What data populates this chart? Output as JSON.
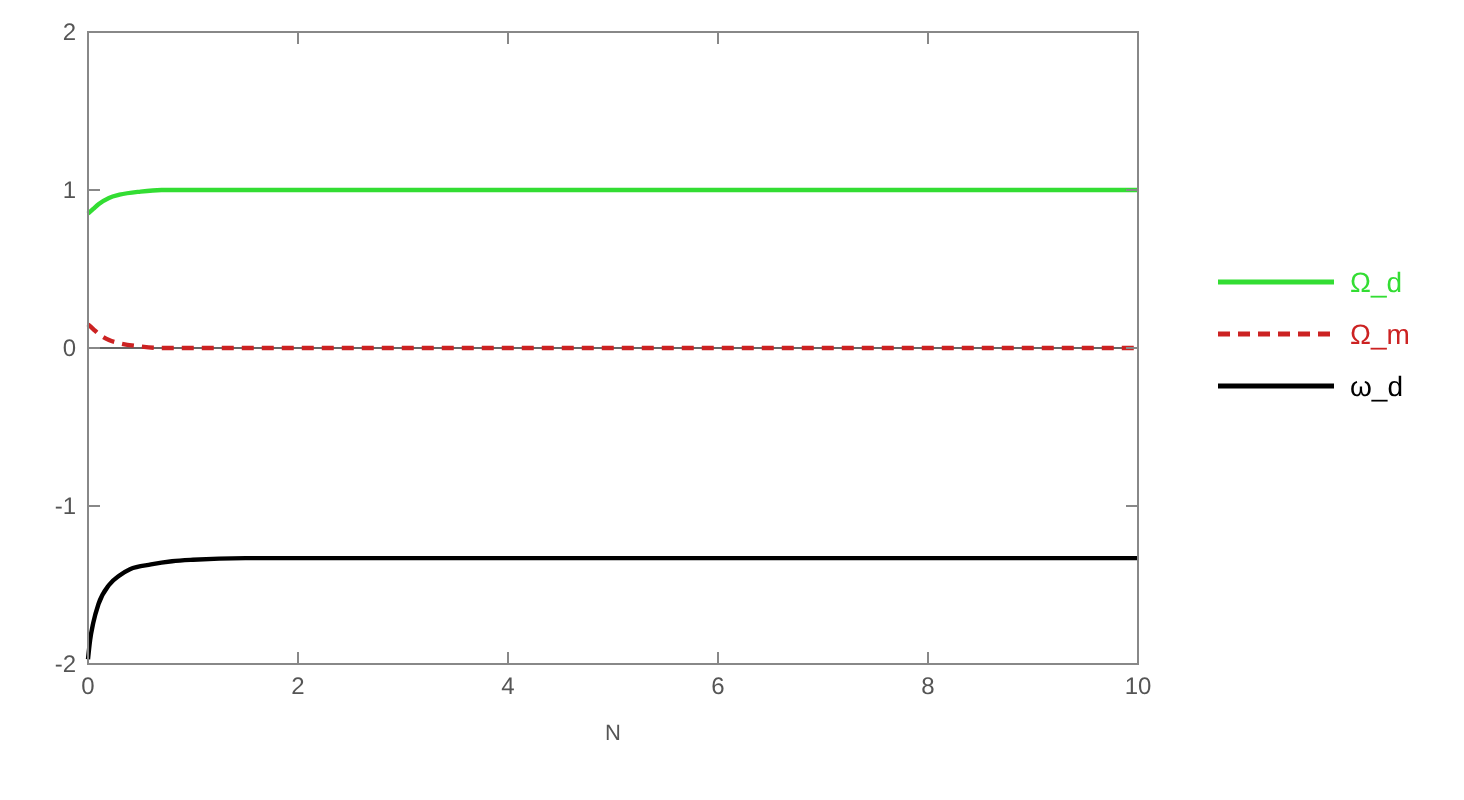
{
  "chart_data": {
    "type": "line",
    "xlabel": "N",
    "xlim": [
      0,
      10
    ],
    "ylim": [
      -2,
      2
    ],
    "xticks": [
      0,
      2,
      4,
      6,
      8,
      10
    ],
    "yticks": [
      -2,
      -1,
      0,
      1,
      2
    ],
    "grid": false,
    "legend": "right",
    "ref_lines": [
      {
        "axis": "y",
        "value": 0,
        "color": "#666666"
      }
    ],
    "series": [
      {
        "name": "Ω_d",
        "color": "#33dd33",
        "line_style": "solid",
        "x": [
          0,
          0.05,
          0.1,
          0.2,
          0.3,
          0.5,
          0.7,
          1,
          1.5,
          2,
          4,
          6,
          8,
          10
        ],
        "values": [
          0.85,
          0.88,
          0.91,
          0.95,
          0.97,
          0.99,
          1,
          1,
          1,
          1,
          1,
          1,
          1,
          1
        ]
      },
      {
        "name": "Ω_m",
        "color": "#cc2222",
        "line_style": "dashed",
        "x": [
          0,
          0.05,
          0.1,
          0.2,
          0.3,
          0.5,
          0.7,
          1,
          1.5,
          2,
          4,
          6,
          8,
          10
        ],
        "values": [
          0.15,
          0.12,
          0.09,
          0.05,
          0.03,
          0.01,
          0,
          0,
          0,
          0,
          0,
          0,
          0,
          0
        ]
      },
      {
        "name": "ω_d",
        "color": "#000000",
        "line_style": "solid",
        "x": [
          0,
          0.02,
          0.05,
          0.1,
          0.2,
          0.3,
          0.4,
          0.6,
          0.8,
          1,
          1.5,
          2,
          4,
          6,
          8,
          10
        ],
        "values": [
          -1.97,
          -1.85,
          -1.74,
          -1.62,
          -1.5,
          -1.44,
          -1.4,
          -1.37,
          -1.35,
          -1.34,
          -1.33,
          -1.33,
          -1.33,
          -1.33,
          -1.33,
          -1.33
        ]
      }
    ]
  }
}
